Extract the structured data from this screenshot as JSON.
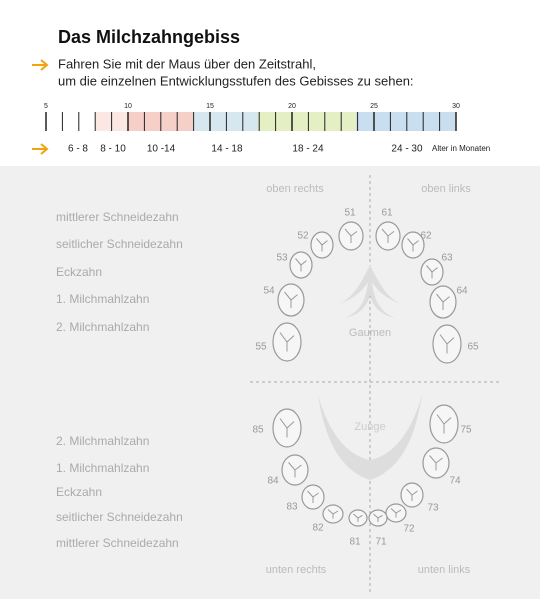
{
  "header": {
    "title": "Das Milchzahngebiss",
    "instruction": [
      "Fahren Sie mit der Maus über den Zeitstrahl,",
      "um die einzelnen Entwicklungsstufen des Gebisses zu sehen:"
    ]
  },
  "timeline": {
    "ticks": [
      5,
      10,
      15,
      20,
      25,
      30
    ],
    "ranges": [
      "6 - 8",
      "8 - 10",
      "10 -14",
      "14 - 18",
      "18 - 24",
      "24 - 30"
    ],
    "unit_label": "Alter in Monaten"
  },
  "diagram": {
    "quadrants": {
      "upper_right": "oben rechts",
      "upper_left": "oben links",
      "lower_right": "unten rechts",
      "lower_left": "unten links"
    },
    "upper_labels": [
      "mittlerer Schneidezahn",
      "seitlicher Schneidezahn",
      "Eckzahn",
      "1. Milchmahlzahn",
      "2. Milchmahlzahn"
    ],
    "lower_labels": [
      "2. Milchmahlzahn",
      "1. Milchmahlzahn",
      "Eckzahn",
      "seitlicher Schneidezahn",
      "mittlerer Schneidezahn"
    ],
    "palate": "Gaumen",
    "tongue": "Zunge",
    "upper_teeth": [
      "51",
      "61",
      "52",
      "62",
      "53",
      "63",
      "54",
      "64",
      "55",
      "65"
    ],
    "lower_teeth": [
      "85",
      "75",
      "84",
      "74",
      "83",
      "73",
      "82",
      "72",
      "81",
      "71"
    ]
  }
}
